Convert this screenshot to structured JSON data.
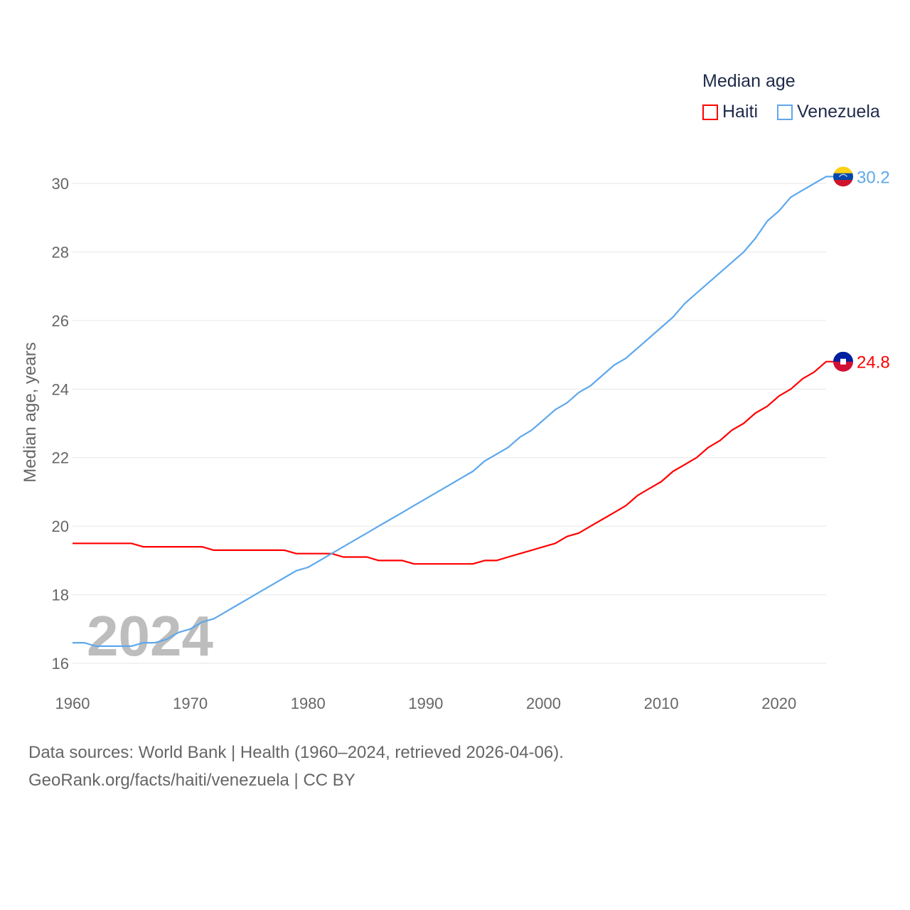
{
  "chart_data": {
    "type": "line",
    "title": "Median age",
    "xlabel": "",
    "ylabel": "Median age, years",
    "xlim": [
      1960,
      2024
    ],
    "ylim": [
      16,
      30
    ],
    "xticks": [
      1960,
      1970,
      1980,
      1990,
      2000,
      2010,
      2020
    ],
    "yticks": [
      16,
      18,
      20,
      22,
      24,
      26,
      28,
      30
    ],
    "grid": true,
    "legend_position": "top-right",
    "watermark_year": "2024",
    "x": [
      1960,
      1961,
      1962,
      1963,
      1964,
      1965,
      1966,
      1967,
      1968,
      1969,
      1970,
      1971,
      1972,
      1973,
      1974,
      1975,
      1976,
      1977,
      1978,
      1979,
      1980,
      1981,
      1982,
      1983,
      1984,
      1985,
      1986,
      1987,
      1988,
      1989,
      1990,
      1991,
      1992,
      1993,
      1994,
      1995,
      1996,
      1997,
      1998,
      1999,
      2000,
      2001,
      2002,
      2003,
      2004,
      2005,
      2006,
      2007,
      2008,
      2009,
      2010,
      2011,
      2012,
      2013,
      2014,
      2015,
      2016,
      2017,
      2018,
      2019,
      2020,
      2021,
      2022,
      2023,
      2024
    ],
    "series": [
      {
        "name": "Haiti",
        "color": "#ff0000",
        "end_label": "24.8",
        "values": [
          19.5,
          19.5,
          19.5,
          19.5,
          19.5,
          19.5,
          19.4,
          19.4,
          19.4,
          19.4,
          19.4,
          19.4,
          19.3,
          19.3,
          19.3,
          19.3,
          19.3,
          19.3,
          19.3,
          19.2,
          19.2,
          19.2,
          19.2,
          19.1,
          19.1,
          19.1,
          19.0,
          19.0,
          19.0,
          18.9,
          18.9,
          18.9,
          18.9,
          18.9,
          18.9,
          19.0,
          19.0,
          19.1,
          19.2,
          19.3,
          19.4,
          19.5,
          19.7,
          19.8,
          20.0,
          20.2,
          20.4,
          20.6,
          20.9,
          21.1,
          21.3,
          21.6,
          21.8,
          22.0,
          22.3,
          22.5,
          22.8,
          23.0,
          23.3,
          23.5,
          23.8,
          24.0,
          24.3,
          24.5,
          24.8
        ]
      },
      {
        "name": "Venezuela",
        "color": "#5ea8ec",
        "end_label": "30.2",
        "values": [
          16.6,
          16.6,
          16.5,
          16.5,
          16.5,
          16.5,
          16.6,
          16.6,
          16.7,
          16.9,
          17.0,
          17.2,
          17.3,
          17.5,
          17.7,
          17.9,
          18.1,
          18.3,
          18.5,
          18.7,
          18.8,
          19.0,
          19.2,
          19.4,
          19.6,
          19.8,
          20.0,
          20.2,
          20.4,
          20.6,
          20.8,
          21.0,
          21.2,
          21.4,
          21.6,
          21.9,
          22.1,
          22.3,
          22.6,
          22.8,
          23.1,
          23.4,
          23.6,
          23.9,
          24.1,
          24.4,
          24.7,
          24.9,
          25.2,
          25.5,
          25.8,
          26.1,
          26.5,
          26.8,
          27.1,
          27.4,
          27.7,
          28.0,
          28.4,
          28.9,
          29.2,
          29.6,
          29.8,
          30.0,
          30.2
        ]
      }
    ]
  },
  "footer": {
    "source": "Data sources: World Bank | Health (1960–2024, retrieved 2026-04-06).",
    "credit": "GeoRank.org/facts/haiti/venezuela | CC BY"
  }
}
